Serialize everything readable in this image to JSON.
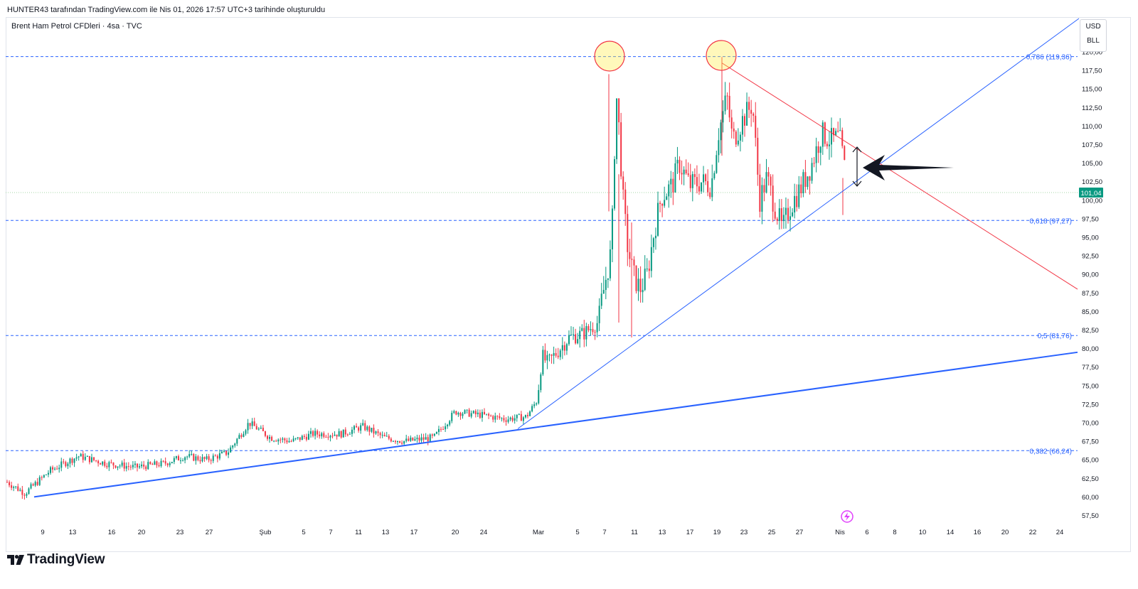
{
  "header": {
    "text": "HUNTER43 tarafından TradingView.com ile Nis 01, 2026 17:57 UTC+3 tarihinde oluşturuldu"
  },
  "symbol": {
    "title": "Brent Ham Petrol CFDleri · 4sa · TVC"
  },
  "currency": {
    "primary": "USD",
    "secondary": "BLL"
  },
  "branding": {
    "name": "TradingView",
    "logo_icon": "tradingview-logo-icon"
  },
  "colors": {
    "up": "#089981",
    "down": "#f23645",
    "trendline_blue": "#2962ff",
    "resistance_red": "#f23645",
    "fib_line": "#2962ff",
    "last_price": "#089981"
  },
  "chart_data": {
    "type": "candlestick",
    "timeframe": "4sa",
    "y_axis": {
      "ticks": [
        "57,50",
        "60,00",
        "62,50",
        "65,00",
        "67,50",
        "70,00",
        "72,50",
        "75,00",
        "77,50",
        "80,00",
        "82,50",
        "85,00",
        "87,50",
        "90,00",
        "92,50",
        "95,00",
        "97,50",
        "100,00",
        "102,50",
        "105,00",
        "107,50",
        "110,00",
        "112,50",
        "115,00",
        "117,50",
        "120,00"
      ],
      "range": [
        55.3,
        125.0
      ]
    },
    "x_axis": {
      "ticks": [
        "9",
        "13",
        "16",
        "20",
        "23",
        "27",
        "Şub",
        "5",
        "7",
        "11",
        "13",
        "17",
        "20",
        "24",
        "Mar",
        "5",
        "7",
        "11",
        "13",
        "17",
        "19",
        "23",
        "25",
        "27",
        "Nis",
        "6",
        "8",
        "10",
        "14",
        "16",
        "20",
        "22",
        "24"
      ]
    },
    "price_anchors": [
      [
        0,
        62.0
      ],
      [
        25,
        60.5
      ],
      [
        60,
        63.5
      ],
      [
        100,
        65.5
      ],
      [
        140,
        64.5
      ],
      [
        180,
        64.0
      ],
      [
        220,
        64.5
      ],
      [
        250,
        65.5
      ],
      [
        280,
        65.0
      ],
      [
        310,
        66.0
      ],
      [
        340,
        70.0
      ],
      [
        370,
        68.0
      ],
      [
        400,
        67.5
      ],
      [
        430,
        68.5
      ],
      [
        470,
        68.5
      ],
      [
        500,
        69.5
      ],
      [
        530,
        68.0
      ],
      [
        560,
        67.5
      ],
      [
        600,
        68.0
      ],
      [
        630,
        71.5
      ],
      [
        670,
        71.0
      ],
      [
        700,
        70.5
      ],
      [
        730,
        70.8
      ],
      [
        745,
        73.0
      ],
      [
        752,
        79.0
      ],
      [
        760,
        78.0
      ],
      [
        790,
        81.5
      ],
      [
        810,
        82.0
      ],
      [
        830,
        83.5
      ],
      [
        848,
        92.5
      ],
      [
        852,
        99.0
      ],
      [
        856,
        115.0
      ],
      [
        860,
        110.0
      ],
      [
        866,
        100.0
      ],
      [
        872,
        94.0
      ],
      [
        880,
        90.0
      ],
      [
        890,
        88.0
      ],
      [
        900,
        90.0
      ],
      [
        910,
        96.0
      ],
      [
        920,
        100.5
      ],
      [
        935,
        102.0
      ],
      [
        945,
        105.0
      ],
      [
        960,
        102.0
      ],
      [
        975,
        102.5
      ],
      [
        990,
        102.0
      ],
      [
        1000,
        109.0
      ],
      [
        1012,
        114.0
      ],
      [
        1020,
        108.0
      ],
      [
        1035,
        111.0
      ],
      [
        1048,
        113.0
      ],
      [
        1058,
        100.0
      ],
      [
        1068,
        103.0
      ],
      [
        1080,
        99.0
      ],
      [
        1090,
        96.0
      ],
      [
        1100,
        99.0
      ],
      [
        1115,
        101.5
      ],
      [
        1130,
        104.5
      ],
      [
        1145,
        109.0
      ],
      [
        1160,
        108.0
      ],
      [
        1170,
        108.5
      ],
      [
        1180,
        103.0
      ],
      [
        1190,
        101.5
      ]
    ],
    "last_price": {
      "value": 101.04,
      "label": "101,04"
    },
    "fibonacci_levels": [
      {
        "ratio": 0.786,
        "price": 119.36,
        "label": "0,786 (119,36)"
      },
      {
        "ratio": 0.618,
        "price": 97.27,
        "label": "0,618 (97,27)"
      },
      {
        "ratio": 0.5,
        "price": 81.76,
        "label": "0,5 (81,76)"
      },
      {
        "ratio": 0.382,
        "price": 66.24,
        "label": "0,382 (66,24)"
      }
    ],
    "trendlines": [
      {
        "name": "long-term-support",
        "color": "blue",
        "width": 2,
        "points": [
          [
            "8",
            60.0
          ],
          [
            "26",
            79.5
          ]
        ]
      },
      {
        "name": "rising-support",
        "color": "blue",
        "width": 1,
        "points": [
          [
            "24",
            69.2
          ],
          [
            "24",
            124.5
          ]
        ]
      },
      {
        "name": "falling-resistance",
        "color": "red",
        "width": 1,
        "points": [
          [
            "19",
            118.5
          ],
          [
            "24",
            88.0
          ]
        ]
      }
    ],
    "annotations": [
      {
        "type": "circle",
        "name": "peak-1",
        "at_price": 119.36
      },
      {
        "type": "circle",
        "name": "peak-2",
        "at_price": 119.36
      },
      {
        "type": "double-arrow",
        "name": "triangle-width"
      },
      {
        "type": "arrow",
        "name": "apex-pointer",
        "direction": "left"
      }
    ]
  }
}
